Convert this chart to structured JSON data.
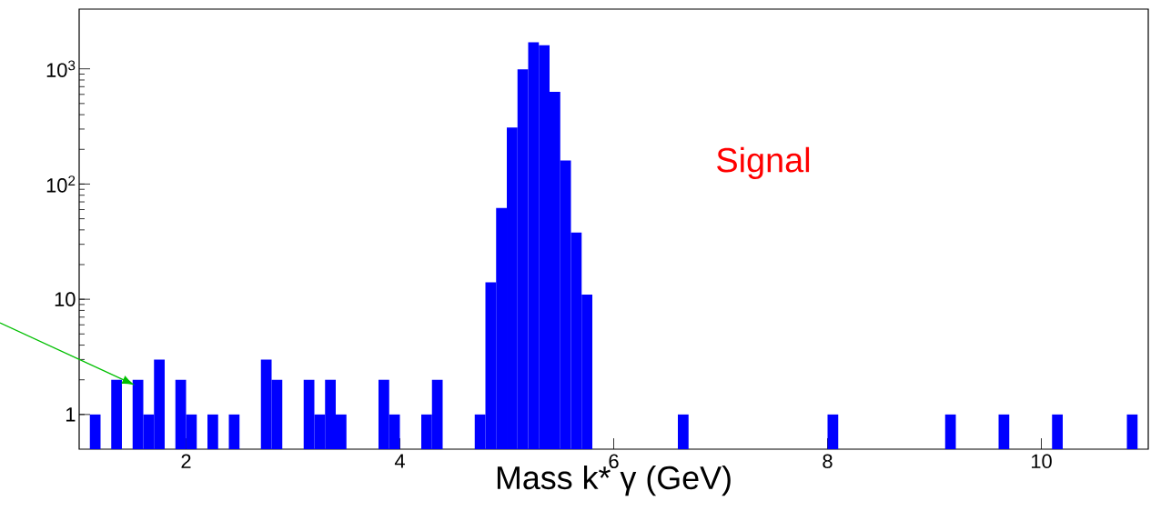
{
  "chart_data": {
    "type": "histogram",
    "xlabel": "Mass k* γ (GeV)",
    "bins": [
      1.0,
      1.1,
      1.2,
      1.3,
      1.4,
      1.5,
      1.6,
      1.7,
      1.8,
      1.9,
      2.0,
      2.1,
      2.2,
      2.3,
      2.4,
      2.5,
      2.6,
      2.7,
      2.8,
      2.9,
      3.0,
      3.1,
      3.2,
      3.3,
      3.4,
      3.5,
      3.6,
      3.7,
      3.8,
      3.9,
      4.0,
      4.1,
      4.2,
      4.3,
      4.4,
      4.5,
      4.6,
      4.7,
      4.8,
      4.9,
      5.0,
      5.1,
      5.2,
      5.3,
      5.4,
      5.5,
      5.6,
      5.7,
      5.8,
      5.9,
      6.0,
      6.1,
      6.2,
      6.3,
      6.4,
      6.5,
      6.6,
      6.7,
      6.8,
      6.9,
      7.0,
      7.1,
      7.2,
      7.3,
      7.4,
      7.5,
      7.6,
      7.7,
      7.8,
      7.9,
      8.0,
      8.1,
      8.2,
      8.3,
      8.4,
      8.5,
      8.6,
      8.7,
      8.8,
      8.9,
      9.0,
      9.1,
      9.2,
      9.3,
      9.4,
      9.5,
      9.6,
      9.7,
      9.8,
      9.9,
      10.0,
      10.1,
      10.2,
      10.3,
      10.4,
      10.5,
      10.6,
      10.7,
      10.8,
      10.9,
      11.0
    ],
    "values": [
      null,
      1,
      null,
      2,
      null,
      2,
      1,
      3,
      null,
      2,
      1,
      null,
      1,
      null,
      1,
      null,
      null,
      3,
      2,
      null,
      null,
      2,
      1,
      2,
      1,
      null,
      null,
      null,
      2,
      1,
      null,
      null,
      1,
      2,
      null,
      null,
      null,
      1,
      14,
      62,
      310,
      990,
      1700,
      1600,
      630,
      160,
      38,
      11,
      null,
      null,
      null,
      null,
      null,
      null,
      null,
      null,
      1,
      null,
      null,
      null,
      null,
      null,
      null,
      null,
      null,
      null,
      null,
      null,
      null,
      null,
      1,
      null,
      null,
      null,
      null,
      null,
      null,
      null,
      null,
      null,
      null,
      1,
      null,
      null,
      null,
      null,
      1,
      null,
      null,
      null,
      null,
      1,
      null,
      null,
      null,
      null,
      null,
      null,
      1,
      null
    ],
    "color": "#0000ff",
    "log": "y",
    "xlim": [
      1,
      11
    ],
    "xticks": [
      2,
      4,
      6,
      8,
      10
    ],
    "ylim": [
      0.5,
      3300
    ],
    "yticks": [
      1,
      10,
      {
        "value": 100,
        "label": "10$^{2}$"
      },
      {
        "value": 1000,
        "label": "10$^{3}$"
      }
    ],
    "annotations": [
      "Signal"
    ]
  }
}
